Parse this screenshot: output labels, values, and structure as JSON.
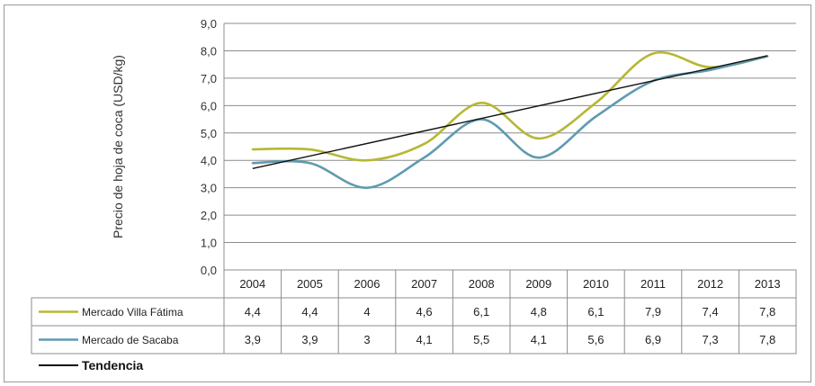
{
  "chart_data": {
    "type": "line",
    "ylabel": "Precio de hoja de coca (USD/kg)",
    "ylim": [
      0,
      9
    ],
    "y_ticks": [
      "0,0",
      "1,0",
      "2,0",
      "3,0",
      "4,0",
      "5,0",
      "6,0",
      "7,0",
      "8,0",
      "9,0"
    ],
    "categories": [
      "2004",
      "2005",
      "2006",
      "2007",
      "2008",
      "2009",
      "2010",
      "2011",
      "2012",
      "2013"
    ],
    "grid": true,
    "legend": "table-bottom",
    "series": [
      {
        "name": "Mercado Villa Fátima",
        "color": "#b5b832",
        "values": [
          4.4,
          4.4,
          4,
          4.6,
          6.1,
          4.8,
          6.1,
          7.9,
          7.4,
          7.8
        ],
        "labels": [
          "4,4",
          "4,4",
          "4",
          "4,6",
          "6,1",
          "4,8",
          "6,1",
          "7,9",
          "7,4",
          "7,8"
        ]
      },
      {
        "name": "Mercado de Sacaba",
        "color": "#5f9bb0",
        "values": [
          3.9,
          3.9,
          3,
          4.1,
          5.5,
          4.1,
          5.6,
          6.9,
          7.3,
          7.8
        ],
        "labels": [
          "3,9",
          "3,9",
          "3",
          "4,1",
          "5,5",
          "4,1",
          "5,6",
          "6,9",
          "7,3",
          "7,8"
        ]
      }
    ],
    "trend": {
      "name": "Tendencia",
      "color": "#111111",
      "values": [
        3.7,
        4.18,
        4.66,
        5.14,
        5.62,
        6.1,
        6.58,
        7.06,
        7.54,
        7.82
      ]
    }
  }
}
